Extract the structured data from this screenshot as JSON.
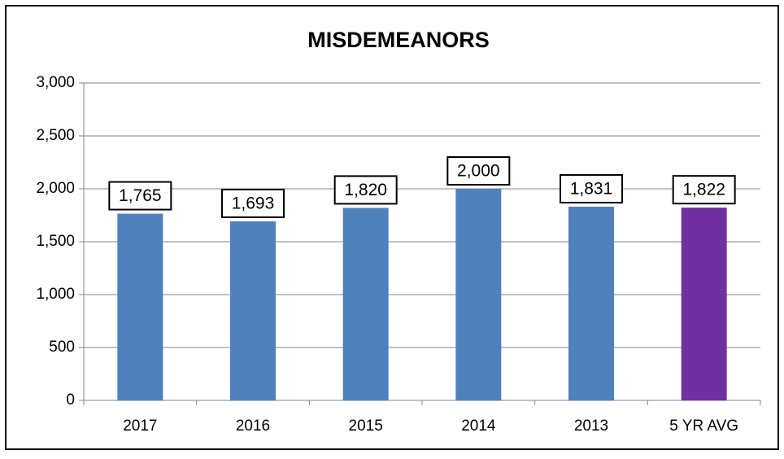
{
  "chart_data": {
    "type": "bar",
    "title": "MISDEMEANORS",
    "categories": [
      "2017",
      "2016",
      "2015",
      "2014",
      "2013",
      "5 YR AVG"
    ],
    "values": [
      1765,
      1693,
      1820,
      2000,
      1831,
      1822
    ],
    "value_labels": [
      "1,765",
      "1,693",
      "1,820",
      "2,000",
      "1,831",
      "1,822"
    ],
    "colors": [
      "#4f81bd",
      "#4f81bd",
      "#4f81bd",
      "#4f81bd",
      "#4f81bd",
      "#7030a0"
    ],
    "ylim": [
      0,
      3000
    ],
    "yticks": [
      0,
      500,
      {
        "value": 1000,
        "label": "1,000"
      },
      {
        "value": 1500,
        "label": "1,500"
      },
      {
        "value": 2000,
        "label": "2,000"
      },
      {
        "value": 2500,
        "label": "2,500"
      },
      {
        "value": 3000,
        "label": "3,000"
      }
    ],
    "grid": true
  }
}
